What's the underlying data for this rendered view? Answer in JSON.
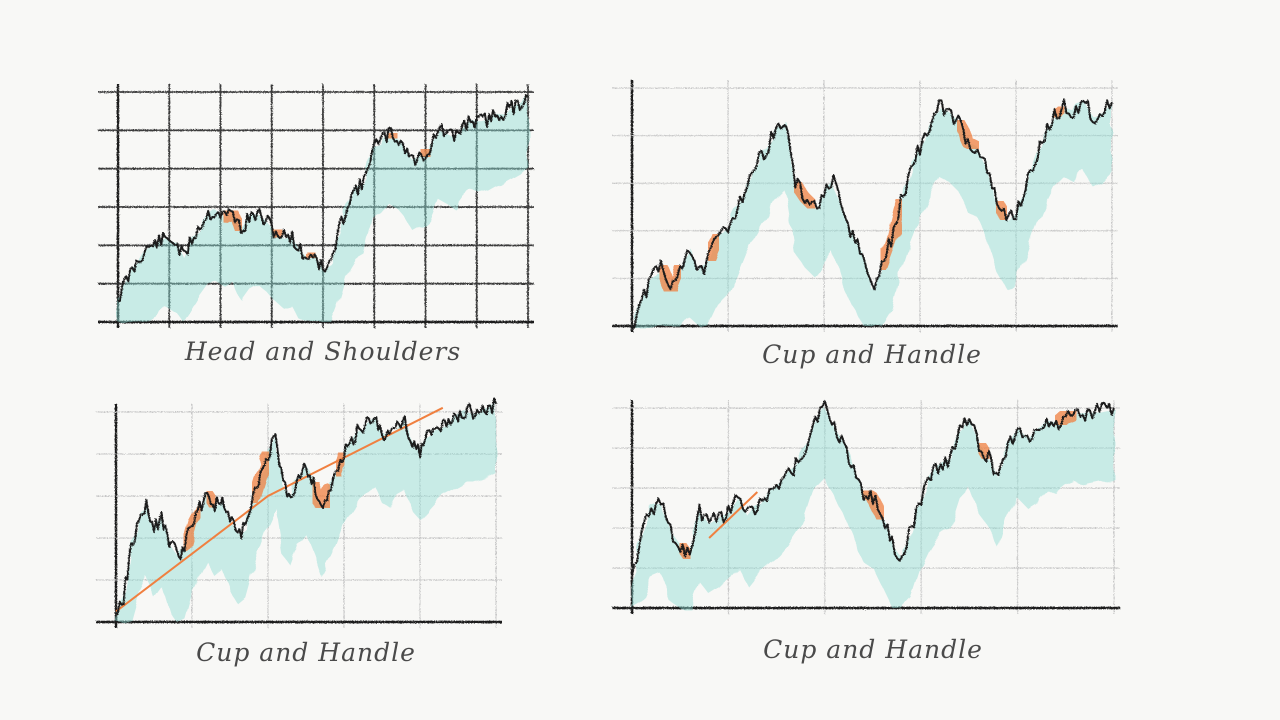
{
  "colors": {
    "background": "#f8f8f6",
    "price_line": "#1c1c1c",
    "teal_wash": "#8fdcd3",
    "orange_highlight": "#f08040",
    "grid_heavy": "#3a3a3a",
    "grid_light": "#c8c8c8",
    "caption_text": "#4a4a4a"
  },
  "chart_data": [
    {
      "type": "line",
      "title": "Head and Shoulders",
      "grid": "heavy",
      "xlim": [
        0,
        100
      ],
      "ylim": [
        0,
        100
      ],
      "series": [
        {
          "x": [
            0,
            2,
            4,
            6,
            8,
            10,
            12,
            14,
            16,
            18,
            20,
            22,
            24,
            26,
            28,
            30,
            32,
            34,
            36,
            38,
            40,
            42,
            44,
            46,
            48,
            50,
            52,
            54,
            56,
            58,
            60,
            62,
            64,
            66,
            68,
            70,
            72,
            74,
            76,
            78,
            80,
            82,
            84,
            86,
            88,
            90,
            92,
            94,
            96,
            98,
            100
          ],
          "values": [
            10,
            18,
            24,
            30,
            33,
            35,
            36,
            35,
            28,
            36,
            42,
            47,
            48,
            46,
            48,
            40,
            45,
            47,
            44,
            40,
            37,
            38,
            32,
            28,
            30,
            22,
            26,
            40,
            52,
            58,
            60,
            76,
            78,
            82,
            80,
            76,
            70,
            72,
            75,
            84,
            82,
            80,
            85,
            88,
            87,
            88,
            90,
            91,
            93,
            95,
            98
          ]
        }
      ],
      "highlights": [
        [
          26,
          30
        ],
        [
          37,
          40
        ],
        [
          45,
          49
        ],
        [
          66,
          69
        ],
        [
          73,
          76
        ]
      ]
    },
    {
      "type": "line",
      "title": "Cup and Handle",
      "grid": "light",
      "xlim": [
        0,
        100
      ],
      "ylim": [
        0,
        100
      ],
      "series": [
        {
          "x": [
            0,
            2,
            4,
            6,
            8,
            10,
            12,
            14,
            16,
            18,
            20,
            22,
            24,
            26,
            28,
            30,
            32,
            34,
            36,
            38,
            40,
            42,
            44,
            46,
            48,
            50,
            52,
            54,
            56,
            58,
            60,
            62,
            64,
            66,
            68,
            70,
            72,
            74,
            76,
            78,
            80,
            82,
            84,
            86,
            88,
            90,
            92,
            94,
            96,
            98,
            100
          ],
          "values": [
            0,
            10,
            20,
            25,
            15,
            25,
            33,
            22,
            28,
            38,
            42,
            50,
            60,
            68,
            75,
            82,
            86,
            60,
            54,
            50,
            55,
            60,
            47,
            38,
            30,
            15,
            25,
            36,
            52,
            65,
            75,
            84,
            92,
            90,
            86,
            77,
            75,
            65,
            52,
            45,
            48,
            58,
            70,
            80,
            88,
            92,
            90,
            95,
            88,
            90,
            94
          ]
        }
      ],
      "highlights": [
        [
          6,
          10
        ],
        [
          16,
          19
        ],
        [
          34,
          38
        ],
        [
          52,
          56
        ],
        [
          68,
          72
        ],
        [
          75,
          79
        ],
        [
          87,
          91
        ]
      ]
    },
    {
      "type": "line",
      "title": "Cup and Handle",
      "grid": "light",
      "xlim": [
        0,
        100
      ],
      "ylim": [
        0,
        100
      ],
      "series": [
        {
          "x": [
            0,
            2,
            4,
            6,
            8,
            10,
            12,
            14,
            16,
            18,
            20,
            22,
            24,
            26,
            28,
            30,
            32,
            34,
            36,
            38,
            40,
            42,
            44,
            46,
            48,
            50,
            52,
            54,
            56,
            58,
            60,
            62,
            64,
            66,
            68,
            70,
            72,
            74,
            76,
            78,
            80,
            82,
            84,
            86,
            88,
            90,
            92,
            94,
            96,
            98,
            100
          ],
          "values": [
            5,
            12,
            35,
            48,
            55,
            45,
            50,
            38,
            32,
            35,
            48,
            55,
            62,
            55,
            58,
            48,
            42,
            45,
            58,
            70,
            80,
            88,
            65,
            60,
            70,
            75,
            66,
            55,
            62,
            70,
            80,
            86,
            92,
            95,
            98,
            90,
            88,
            94,
            96,
            86,
            82,
            88,
            92,
            94,
            96,
            98,
            100,
            100,
            101,
            102,
            104
          ]
        }
      ],
      "highlights": [
        [
          18,
          22
        ],
        [
          24,
          26
        ],
        [
          36,
          40
        ],
        [
          52,
          56
        ],
        [
          58,
          60
        ]
      ],
      "trend_line": [
        [
          0,
          5
        ],
        [
          40,
          60
        ],
        [
          86,
          102
        ]
      ]
    },
    {
      "type": "line",
      "title": "Cup and Handle",
      "grid": "light",
      "xlim": [
        0,
        100
      ],
      "ylim": [
        0,
        100
      ],
      "series": [
        {
          "x": [
            0,
            2,
            4,
            6,
            8,
            10,
            12,
            14,
            16,
            18,
            20,
            22,
            24,
            26,
            28,
            30,
            32,
            34,
            36,
            38,
            40,
            42,
            44,
            46,
            48,
            50,
            52,
            54,
            56,
            58,
            60,
            62,
            64,
            66,
            68,
            70,
            72,
            74,
            76,
            78,
            80,
            82,
            84,
            86,
            88,
            90,
            92,
            94,
            96,
            98,
            100
          ],
          "values": [
            15,
            38,
            50,
            52,
            38,
            32,
            25,
            48,
            42,
            45,
            48,
            55,
            46,
            52,
            56,
            60,
            65,
            72,
            80,
            95,
            100,
            90,
            82,
            70,
            58,
            55,
            45,
            32,
            25,
            40,
            55,
            65,
            72,
            75,
            90,
            95,
            82,
            75,
            65,
            82,
            90,
            85,
            88,
            94,
            92,
            96,
            98,
            97,
            98,
            99,
            100
          ]
        }
      ],
      "highlights": [
        [
          10,
          13
        ],
        [
          48,
          52
        ],
        [
          72,
          75
        ],
        [
          88,
          92
        ]
      ],
      "trend_line": [
        [
          16,
          35
        ],
        [
          26,
          58
        ]
      ]
    }
  ]
}
